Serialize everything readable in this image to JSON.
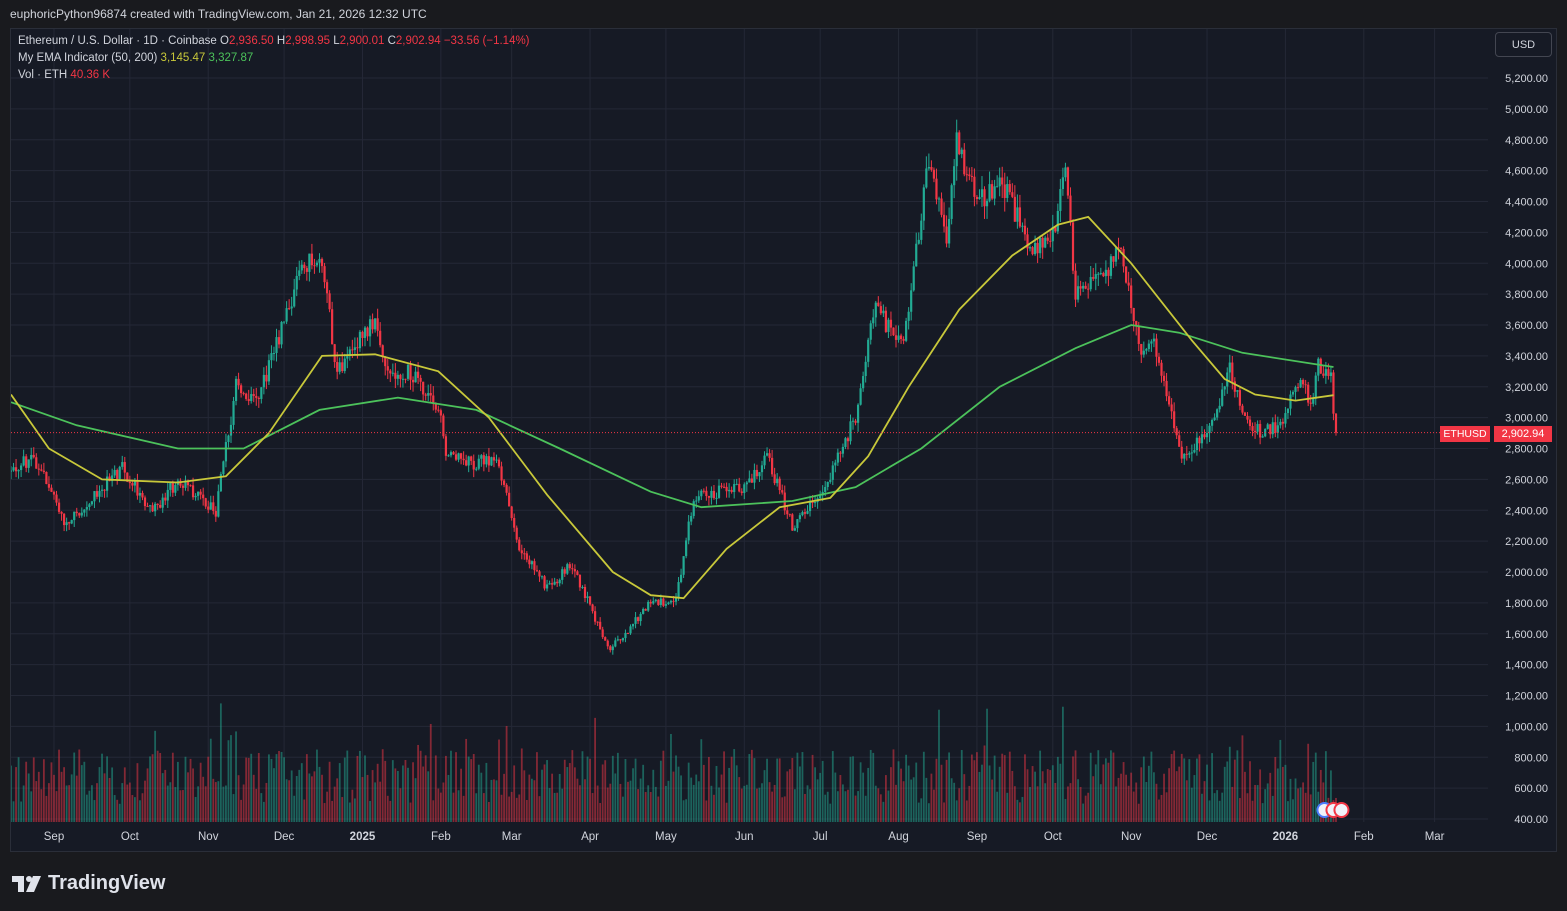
{
  "header": {
    "caption": "euphoricPython96874 created with TradingView.com, Jan 21, 2026 12:32 UTC"
  },
  "legend": {
    "symbol_line": "Ethereum / U.S. Dollar · 1D · Coinbase",
    "o_label": "O",
    "o_value": "2,936.50",
    "h_label": "H",
    "h_value": "2,998.95",
    "l_label": "L",
    "l_value": "2,900.01",
    "c_label": "C",
    "c_value": "2,902.94",
    "change": "−33.56 (−1.14%)",
    "ema_label": "My EMA Indicator (50, 200)",
    "ema50_value": "3,145.47",
    "ema200_value": "3,327.87",
    "vol_label": "Vol · ETH",
    "vol_value": "40.36 K"
  },
  "currency_button": "USD",
  "price_tag": {
    "symbol": "ETHUSD",
    "value": "2,902.94"
  },
  "brand": {
    "name": "TradingView"
  },
  "colors": {
    "up": "#22ab94",
    "down": "#f23645",
    "ema50": "#c8c83a",
    "ema200": "#4cc25b",
    "background": "#161a25",
    "grid": "#242836"
  },
  "chart_data": {
    "type": "candlestick",
    "title": "Ethereum / U.S. Dollar · 1D · Coinbase",
    "x_ticks": [
      "Sep",
      "Oct",
      "Nov",
      "Dec",
      "2025",
      "Feb",
      "Mar",
      "Apr",
      "May",
      "Jun",
      "Jul",
      "Aug",
      "Sep",
      "Oct",
      "Nov",
      "Dec",
      "2026",
      "Feb",
      "Mar"
    ],
    "y_ticks": [
      5200,
      5000,
      4800,
      4600,
      4400,
      4200,
      4000,
      3800,
      3600,
      3400,
      3200,
      3000,
      2800,
      2600,
      2400,
      2200,
      2000,
      1800,
      1600,
      1400,
      1200,
      1000,
      800,
      600,
      400
    ],
    "y_tick_labels": [
      "5,200.00",
      "5,000.00",
      "4,800.00",
      "4,600.00",
      "4,400.00",
      "4,200.00",
      "4,000.00",
      "3,800.00",
      "3,600.00",
      "3,400.00",
      "3,200.00",
      "3,000.00",
      "2,800.00",
      "2,600.00",
      "2,400.00",
      "2,200.00",
      "2,000.00",
      "1,800.00",
      "1,600.00",
      "1,400.00",
      "1,200.00",
      "1,000.00",
      "800.00",
      "600.00",
      "400.00"
    ],
    "ylim": [
      400,
      5300
    ],
    "last_price": 2902.94,
    "close_path": [
      {
        "date": "2024-08-15",
        "close": 2650
      },
      {
        "date": "2024-08-24",
        "close": 2750
      },
      {
        "date": "2024-09-06",
        "close": 2300
      },
      {
        "date": "2024-09-20",
        "close": 2550
      },
      {
        "date": "2024-09-28",
        "close": 2680
      },
      {
        "date": "2024-10-10",
        "close": 2380
      },
      {
        "date": "2024-10-20",
        "close": 2600
      },
      {
        "date": "2024-11-04",
        "close": 2400
      },
      {
        "date": "2024-11-12",
        "close": 3200
      },
      {
        "date": "2024-11-20",
        "close": 3100
      },
      {
        "date": "2024-12-02",
        "close": 3650
      },
      {
        "date": "2024-12-08",
        "close": 4000
      },
      {
        "date": "2024-12-16",
        "close": 4000
      },
      {
        "date": "2024-12-22",
        "close": 3300
      },
      {
        "date": "2025-01-06",
        "close": 3650
      },
      {
        "date": "2025-01-12",
        "close": 3250
      },
      {
        "date": "2025-01-20",
        "close": 3300
      },
      {
        "date": "2025-02-01",
        "close": 3000
      },
      {
        "date": "2025-02-03",
        "close": 2800
      },
      {
        "date": "2025-02-15",
        "close": 2700
      },
      {
        "date": "2025-02-23",
        "close": 2750
      },
      {
        "date": "2025-03-03",
        "close": 2200
      },
      {
        "date": "2025-03-15",
        "close": 1900
      },
      {
        "date": "2025-03-25",
        "close": 2050
      },
      {
        "date": "2025-04-08",
        "close": 1500
      },
      {
        "date": "2025-04-15",
        "close": 1600
      },
      {
        "date": "2025-04-25",
        "close": 1800
      },
      {
        "date": "2025-05-05",
        "close": 1820
      },
      {
        "date": "2025-05-12",
        "close": 2500
      },
      {
        "date": "2025-06-01",
        "close": 2550
      },
      {
        "date": "2025-06-10",
        "close": 2750
      },
      {
        "date": "2025-06-20",
        "close": 2300
      },
      {
        "date": "2025-07-01",
        "close": 2500
      },
      {
        "date": "2025-07-15",
        "close": 3000
      },
      {
        "date": "2025-07-22",
        "close": 3700
      },
      {
        "date": "2025-08-03",
        "close": 3500
      },
      {
        "date": "2025-08-13",
        "close": 4700
      },
      {
        "date": "2025-08-20",
        "close": 4200
      },
      {
        "date": "2025-08-24",
        "close": 4800
      },
      {
        "date": "2025-09-01",
        "close": 4400
      },
      {
        "date": "2025-09-12",
        "close": 4500
      },
      {
        "date": "2025-09-22",
        "close": 4100
      },
      {
        "date": "2025-09-30",
        "close": 4100
      },
      {
        "date": "2025-10-06",
        "close": 4600
      },
      {
        "date": "2025-10-10",
        "close": 3800
      },
      {
        "date": "2025-10-20",
        "close": 3900
      },
      {
        "date": "2025-10-28",
        "close": 4100
      },
      {
        "date": "2025-11-05",
        "close": 3400
      },
      {
        "date": "2025-11-10",
        "close": 3500
      },
      {
        "date": "2025-11-21",
        "close": 2750
      },
      {
        "date": "2025-12-01",
        "close": 2900
      },
      {
        "date": "2025-12-10",
        "close": 3300
      },
      {
        "date": "2025-12-18",
        "close": 2900
      },
      {
        "date": "2025-12-31",
        "close": 2950
      },
      {
        "date": "2026-01-06",
        "close": 3250
      },
      {
        "date": "2026-01-12",
        "close": 3100
      },
      {
        "date": "2026-01-14",
        "close": 3350
      },
      {
        "date": "2026-01-19",
        "close": 3250
      },
      {
        "date": "2026-01-21",
        "close": 2902.94
      }
    ],
    "ema50_path": [
      {
        "date": "2024-08-15",
        "close": 3150
      },
      {
        "date": "2024-08-30",
        "close": 2800
      },
      {
        "date": "2024-09-20",
        "close": 2600
      },
      {
        "date": "2024-10-20",
        "close": 2580
      },
      {
        "date": "2024-11-08",
        "close": 2620
      },
      {
        "date": "2024-11-25",
        "close": 2900
      },
      {
        "date": "2024-12-16",
        "close": 3400
      },
      {
        "date": "2025-01-06",
        "close": 3410
      },
      {
        "date": "2025-01-31",
        "close": 3300
      },
      {
        "date": "2025-02-20",
        "close": 3000
      },
      {
        "date": "2025-03-15",
        "close": 2500
      },
      {
        "date": "2025-04-10",
        "close": 2000
      },
      {
        "date": "2025-04-25",
        "close": 1850
      },
      {
        "date": "2025-05-08",
        "close": 1830
      },
      {
        "date": "2025-05-25",
        "close": 2150
      },
      {
        "date": "2025-06-15",
        "close": 2420
      },
      {
        "date": "2025-07-05",
        "close": 2480
      },
      {
        "date": "2025-07-20",
        "close": 2750
      },
      {
        "date": "2025-08-05",
        "close": 3200
      },
      {
        "date": "2025-08-25",
        "close": 3700
      },
      {
        "date": "2025-09-15",
        "close": 4050
      },
      {
        "date": "2025-10-03",
        "close": 4250
      },
      {
        "date": "2025-10-15",
        "close": 4300
      },
      {
        "date": "2025-11-01",
        "close": 4000
      },
      {
        "date": "2025-11-25",
        "close": 3500
      },
      {
        "date": "2025-12-08",
        "close": 3250
      },
      {
        "date": "2025-12-20",
        "close": 3150
      },
      {
        "date": "2026-01-05",
        "close": 3110
      },
      {
        "date": "2026-01-20",
        "close": 3145.47
      }
    ],
    "ema200_path": [
      {
        "date": "2024-08-15",
        "close": 3100
      },
      {
        "date": "2024-09-10",
        "close": 2950
      },
      {
        "date": "2024-10-20",
        "close": 2800
      },
      {
        "date": "2024-11-15",
        "close": 2800
      },
      {
        "date": "2024-12-15",
        "close": 3050
      },
      {
        "date": "2025-01-15",
        "close": 3130
      },
      {
        "date": "2025-02-15",
        "close": 3050
      },
      {
        "date": "2025-03-20",
        "close": 2800
      },
      {
        "date": "2025-04-25",
        "close": 2520
      },
      {
        "date": "2025-05-15",
        "close": 2420
      },
      {
        "date": "2025-06-20",
        "close": 2460
      },
      {
        "date": "2025-07-15",
        "close": 2550
      },
      {
        "date": "2025-08-10",
        "close": 2800
      },
      {
        "date": "2025-09-10",
        "close": 3200
      },
      {
        "date": "2025-10-10",
        "close": 3450
      },
      {
        "date": "2025-11-01",
        "close": 3600
      },
      {
        "date": "2025-11-20",
        "close": 3550
      },
      {
        "date": "2025-12-15",
        "close": 3420
      },
      {
        "date": "2026-01-20",
        "close": 3327.87
      }
    ]
  }
}
